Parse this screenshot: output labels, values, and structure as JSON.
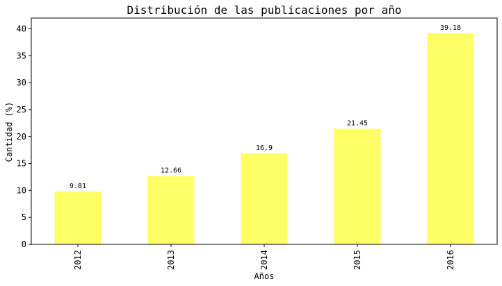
{
  "chart_data": {
    "type": "bar",
    "title": "Distribución de las publicaciones por año",
    "xlabel": "Años",
    "ylabel": "Cantidad (%)",
    "categories": [
      "2012",
      "2013",
      "2014",
      "2015",
      "2016"
    ],
    "values": [
      9.81,
      12.66,
      16.9,
      21.45,
      39.18
    ],
    "data_labels": [
      "9.81",
      "12.66",
      "16.9",
      "21.45",
      "39.18"
    ],
    "ylim": [
      0,
      42
    ],
    "yticks": [
      0,
      5,
      10,
      15,
      20,
      25,
      30,
      35,
      40
    ],
    "bar_color": "#ffff66",
    "grid": false,
    "x_tick_rotation": "vertical"
  }
}
